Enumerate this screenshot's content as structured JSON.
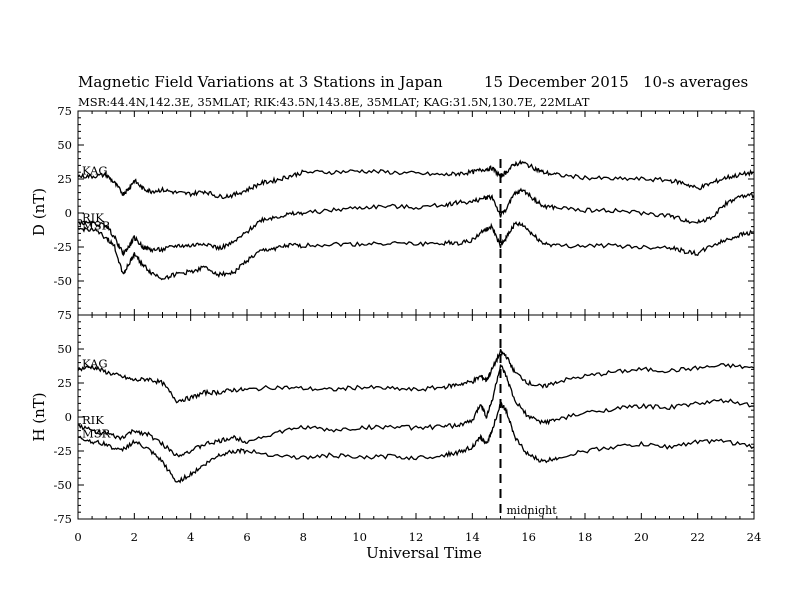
{
  "chart_data": {
    "type": "line",
    "title": "Magnetic Field Variations at 3 Stations in Japan",
    "date": "15 December 2015",
    "averaging": "10-s averages",
    "subtitle": "MSR:44.4N,142.3E, 35MLAT;  RIK:43.5N,143.8E, 35MLAT;  KAG:31.5N,130.7E, 22MLAT",
    "xlabel": "Universal Time",
    "xlim": [
      0,
      24
    ],
    "xticks": [
      "0",
      "2",
      "4",
      "6",
      "8",
      "10",
      "12",
      "14",
      "16",
      "18",
      "20",
      "22",
      "24"
    ],
    "grid": false,
    "annotation": {
      "x": 15,
      "label": "midnight",
      "style": "dashed vertical line"
    },
    "panels": [
      {
        "ylabel": "D (nT)",
        "ylim": [
          -75,
          75
        ],
        "yticks": [
          "75",
          "50",
          "25",
          "0",
          "-25",
          "-50",
          "-75"
        ],
        "x": [
          0,
          0.5,
          1,
          1.3,
          1.6,
          1.8,
          2,
          2.3,
          2.6,
          3,
          3.5,
          4,
          4.5,
          5,
          5.5,
          6,
          6.5,
          7,
          7.5,
          8,
          9,
          10,
          11,
          12,
          13,
          13.5,
          14,
          14.4,
          14.7,
          15,
          15.2,
          15.5,
          15.8,
          16.2,
          16.5,
          17,
          18,
          19,
          20,
          21,
          21.5,
          22,
          22.5,
          23,
          23.5,
          24
        ],
        "series": [
          {
            "name": "KAG",
            "values": [
              27,
              27,
              28,
              22,
              14,
              18,
              24,
              18,
              16,
              17,
              15,
              14,
              16,
              12,
              13,
              17,
              22,
              24,
              27,
              30,
              30,
              31,
              30,
              29,
              28,
              29,
              30,
              32,
              33,
              27,
              30,
              36,
              37,
              33,
              30,
              28,
              26,
              25,
              25,
              24,
              22,
              18,
              22,
              26,
              28,
              30
            ]
          },
          {
            "name": "RIK",
            "values": [
              -7,
              -8,
              -9,
              -18,
              -30,
              -25,
              -18,
              -25,
              -27,
              -27,
              -24,
              -24,
              -22,
              -26,
              -22,
              -14,
              -5,
              -3,
              -1,
              0,
              2,
              4,
              5,
              4,
              6,
              8,
              8,
              11,
              12,
              -2,
              3,
              14,
              17,
              10,
              5,
              4,
              2,
              2,
              0,
              -2,
              -5,
              -7,
              -3,
              7,
              12,
              13
            ]
          },
          {
            "name": "MSR",
            "values": [
              -12,
              -12,
              -18,
              -25,
              -45,
              -38,
              -30,
              -38,
              -44,
              -48,
              -45,
              -43,
              -40,
              -45,
              -44,
              -35,
              -28,
              -26,
              -24,
              -24,
              -23,
              -23,
              -22,
              -23,
              -22,
              -22,
              -20,
              -13,
              -10,
              -25,
              -18,
              -8,
              -9,
              -17,
              -22,
              -24,
              -24,
              -24,
              -25,
              -25,
              -28,
              -30,
              -24,
              -20,
              -16,
              -14
            ]
          }
        ]
      },
      {
        "ylabel": "H (nT)",
        "ylim": [
          -75,
          75
        ],
        "yticks": [
          "75",
          "50",
          "25",
          "0",
          "-25",
          "-50",
          "-75"
        ],
        "x": [
          0,
          0.5,
          1,
          1.5,
          2,
          2.5,
          3,
          3.5,
          4,
          4.5,
          5,
          5.5,
          6,
          7,
          8,
          9,
          10,
          11,
          12,
          13,
          13.5,
          14,
          14.3,
          14.5,
          14.7,
          15,
          15.2,
          15.5,
          16,
          16.5,
          17,
          18,
          19,
          20,
          21,
          22,
          23,
          24
        ],
        "series": [
          {
            "name": "KAG",
            "values": [
              35,
              37,
              33,
              30,
              27,
              28,
              25,
              12,
              14,
              18,
              18,
              20,
              20,
              22,
              21,
              20,
              22,
              21,
              20,
              22,
              24,
              26,
              30,
              27,
              35,
              48,
              45,
              33,
              25,
              22,
              26,
              30,
              33,
              35,
              34,
              36,
              38,
              36
            ]
          },
          {
            "name": "RIK",
            "values": [
              -6,
              -10,
              -12,
              -16,
              -10,
              -13,
              -20,
              -28,
              -25,
              -20,
              -18,
              -15,
              -18,
              -12,
              -7,
              -10,
              -8,
              -7,
              -8,
              -7,
              -6,
              -3,
              10,
              0,
              12,
              38,
              30,
              12,
              0,
              -4,
              -2,
              3,
              6,
              8,
              7,
              10,
              12,
              8
            ]
          },
          {
            "name": "MSR",
            "values": [
              -15,
              -18,
              -20,
              -25,
              -18,
              -24,
              -33,
              -48,
              -42,
              -35,
              -28,
              -25,
              -25,
              -28,
              -30,
              -28,
              -30,
              -29,
              -30,
              -28,
              -26,
              -22,
              -15,
              -20,
              -10,
              10,
              5,
              -15,
              -28,
              -33,
              -30,
              -25,
              -22,
              -20,
              -22,
              -18,
              -18,
              -22
            ]
          }
        ]
      }
    ]
  }
}
